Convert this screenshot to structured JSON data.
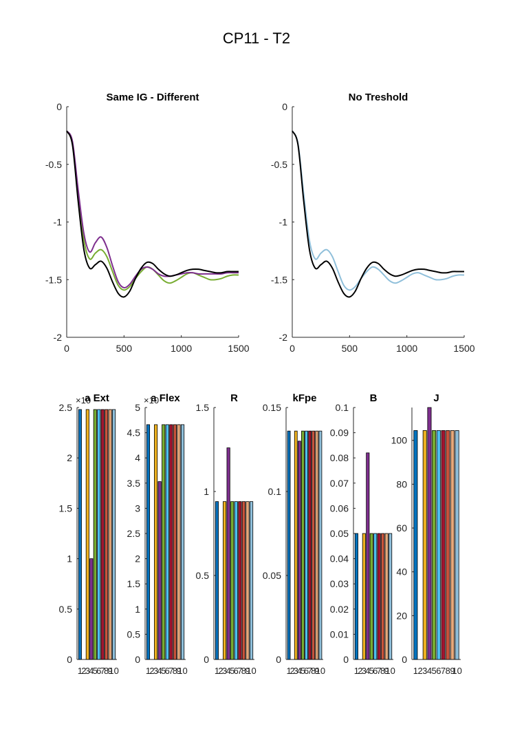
{
  "figure_title": "CP11 - T2",
  "series_colors": [
    "#0072BD",
    "#D95319",
    "#EDB120",
    "#7E2F8E",
    "#77AC30",
    "#4DBEEE",
    "#A2142F",
    "#C8543C",
    "#E6A87A",
    "#8FBFDA"
  ],
  "chart_data": [
    {
      "type": "line",
      "title": "Same IG - Different",
      "xlim": [
        0,
        1500
      ],
      "ylim": [
        -2,
        0
      ],
      "xticks": [
        "0",
        "500",
        "1000",
        "1500"
      ],
      "yticks": [
        "0",
        "-0.5",
        "-1",
        "-1.5",
        "-2"
      ],
      "grid": false,
      "series": [
        {
          "color": "#77AC30",
          "x": [
            0,
            50,
            100,
            150,
            200,
            250,
            300,
            350,
            400,
            450,
            500,
            550,
            600,
            650,
            700,
            750,
            800,
            850,
            900,
            950,
            1000,
            1050,
            1100,
            1150,
            1200,
            1250,
            1300,
            1350,
            1400,
            1450,
            1500
          ],
          "y": [
            -0.21,
            -0.32,
            -0.76,
            -1.16,
            -1.32,
            -1.27,
            -1.24,
            -1.3,
            -1.43,
            -1.55,
            -1.59,
            -1.56,
            -1.49,
            -1.43,
            -1.39,
            -1.41,
            -1.46,
            -1.51,
            -1.53,
            -1.51,
            -1.48,
            -1.45,
            -1.44,
            -1.46,
            -1.48,
            -1.5,
            -1.5,
            -1.49,
            -1.47,
            -1.46,
            -1.46
          ]
        },
        {
          "color": "#7E2F8E",
          "x": [
            0,
            50,
            100,
            150,
            200,
            250,
            300,
            350,
            400,
            450,
            500,
            550,
            600,
            650,
            700,
            750,
            800,
            850,
            900,
            950,
            1000,
            1050,
            1100,
            1150,
            1200,
            1250,
            1300,
            1350,
            1400,
            1450,
            1500
          ],
          "y": [
            -0.21,
            -0.3,
            -0.72,
            -1.1,
            -1.26,
            -1.18,
            -1.13,
            -1.22,
            -1.38,
            -1.52,
            -1.57,
            -1.54,
            -1.47,
            -1.41,
            -1.39,
            -1.41,
            -1.45,
            -1.47,
            -1.47,
            -1.46,
            -1.45,
            -1.44,
            -1.44,
            -1.45,
            -1.45,
            -1.45,
            -1.45,
            -1.45,
            -1.44,
            -1.44,
            -1.44
          ]
        },
        {
          "color": "#000000",
          "x": [
            0,
            50,
            100,
            150,
            200,
            250,
            300,
            350,
            400,
            450,
            500,
            550,
            600,
            650,
            700,
            750,
            800,
            850,
            900,
            950,
            1000,
            1050,
            1100,
            1150,
            1200,
            1250,
            1300,
            1350,
            1400,
            1450,
            1500
          ],
          "y": [
            -0.21,
            -0.33,
            -0.82,
            -1.24,
            -1.4,
            -1.37,
            -1.34,
            -1.4,
            -1.52,
            -1.62,
            -1.65,
            -1.6,
            -1.49,
            -1.4,
            -1.35,
            -1.36,
            -1.41,
            -1.45,
            -1.47,
            -1.46,
            -1.44,
            -1.42,
            -1.41,
            -1.41,
            -1.42,
            -1.43,
            -1.44,
            -1.44,
            -1.43,
            -1.43,
            -1.43
          ]
        }
      ]
    },
    {
      "type": "line",
      "title": "No Treshold",
      "xlim": [
        0,
        1500
      ],
      "ylim": [
        -2,
        0
      ],
      "xticks": [
        "0",
        "500",
        "1000",
        "1500"
      ],
      "yticks": [
        "0",
        "-0.5",
        "-1",
        "-1.5",
        "-2"
      ],
      "grid": false,
      "series": [
        {
          "color": "#8FBFDA",
          "x": [
            0,
            50,
            100,
            150,
            200,
            250,
            300,
            350,
            400,
            450,
            500,
            550,
            600,
            650,
            700,
            750,
            800,
            850,
            900,
            950,
            1000,
            1050,
            1100,
            1150,
            1200,
            1250,
            1300,
            1350,
            1400,
            1450,
            1500
          ],
          "y": [
            -0.21,
            -0.32,
            -0.76,
            -1.16,
            -1.32,
            -1.27,
            -1.24,
            -1.3,
            -1.43,
            -1.55,
            -1.59,
            -1.56,
            -1.49,
            -1.43,
            -1.39,
            -1.41,
            -1.46,
            -1.51,
            -1.53,
            -1.51,
            -1.48,
            -1.45,
            -1.44,
            -1.46,
            -1.48,
            -1.5,
            -1.5,
            -1.49,
            -1.47,
            -1.46,
            -1.46
          ]
        },
        {
          "color": "#000000",
          "x": [
            0,
            50,
            100,
            150,
            200,
            250,
            300,
            350,
            400,
            450,
            500,
            550,
            600,
            650,
            700,
            750,
            800,
            850,
            900,
            950,
            1000,
            1050,
            1100,
            1150,
            1200,
            1250,
            1300,
            1350,
            1400,
            1450,
            1500
          ],
          "y": [
            -0.21,
            -0.33,
            -0.82,
            -1.24,
            -1.4,
            -1.37,
            -1.34,
            -1.4,
            -1.52,
            -1.62,
            -1.65,
            -1.6,
            -1.49,
            -1.4,
            -1.35,
            -1.36,
            -1.41,
            -1.45,
            -1.47,
            -1.46,
            -1.44,
            -1.42,
            -1.41,
            -1.41,
            -1.42,
            -1.43,
            -1.44,
            -1.44,
            -1.43,
            -1.43,
            -1.43
          ]
        }
      ]
    },
    {
      "type": "bar",
      "title": "a Ext",
      "multiplier": "×10",
      "categories": [
        "1",
        "2",
        "3",
        "4",
        "5",
        "6",
        "7",
        "8",
        "9",
        "10"
      ],
      "values": [
        2.48,
        0,
        2.48,
        1.0,
        2.48,
        2.48,
        2.48,
        2.48,
        2.48,
        2.48
      ],
      "ylim": [
        0,
        2.5
      ],
      "yticks": [
        "0",
        "0.5",
        "1",
        "1.5",
        "2",
        "2.5"
      ]
    },
    {
      "type": "bar",
      "title": "a Flex",
      "multiplier": "×10",
      "categories": [
        "1",
        "2",
        "3",
        "4",
        "5",
        "6",
        "7",
        "8",
        "9",
        "10"
      ],
      "values": [
        4.66,
        0,
        4.66,
        3.53,
        4.66,
        4.66,
        4.66,
        4.66,
        4.66,
        4.66
      ],
      "ylim": [
        0,
        5
      ],
      "yticks": [
        "0",
        "0.5",
        "1",
        "1.5",
        "2",
        "2.5",
        "3",
        "3.5",
        "4",
        "4.5",
        "5"
      ]
    },
    {
      "type": "bar",
      "title": "R",
      "categories": [
        "1",
        "2",
        "3",
        "4",
        "5",
        "6",
        "7",
        "8",
        "9",
        "10"
      ],
      "values": [
        0.94,
        0,
        0.94,
        1.26,
        0.94,
        0.94,
        0.94,
        0.94,
        0.94,
        0.94
      ],
      "ylim": [
        0,
        1.5
      ],
      "yticks": [
        "0",
        "0.5",
        "1",
        "1.5"
      ]
    },
    {
      "type": "bar",
      "title": "kFpe",
      "categories": [
        "1",
        "2",
        "3",
        "4",
        "5",
        "6",
        "7",
        "8",
        "9",
        "10"
      ],
      "values": [
        0.136,
        0,
        0.136,
        0.13,
        0.136,
        0.136,
        0.136,
        0.136,
        0.136,
        0.136
      ],
      "ylim": [
        0,
        0.15
      ],
      "yticks": [
        "0",
        "0.05",
        "0.1",
        "0.15"
      ]
    },
    {
      "type": "bar",
      "title": "B",
      "categories": [
        "1",
        "2",
        "3",
        "4",
        "5",
        "6",
        "7",
        "8",
        "9",
        "10"
      ],
      "values": [
        0.05,
        0,
        0.05,
        0.082,
        0.05,
        0.05,
        0.05,
        0.05,
        0.05,
        0.05
      ],
      "ylim": [
        0,
        0.1
      ],
      "yticks": [
        "0",
        "0.01",
        "0.02",
        "0.03",
        "0.04",
        "0.05",
        "0.06",
        "0.07",
        "0.08",
        "0.09",
        "0.1"
      ]
    },
    {
      "type": "bar",
      "title": "J",
      "categories": [
        "1",
        "2",
        "3",
        "4",
        "5",
        "6",
        "7",
        "8",
        "9",
        "10"
      ],
      "values": [
        104.5,
        0,
        104.5,
        115,
        104.5,
        104.5,
        104.5,
        104.5,
        104.5,
        104.5
      ],
      "ylim": [
        0,
        115
      ],
      "yticks": [
        "0",
        "20",
        "40",
        "60",
        "80",
        "100"
      ]
    }
  ]
}
